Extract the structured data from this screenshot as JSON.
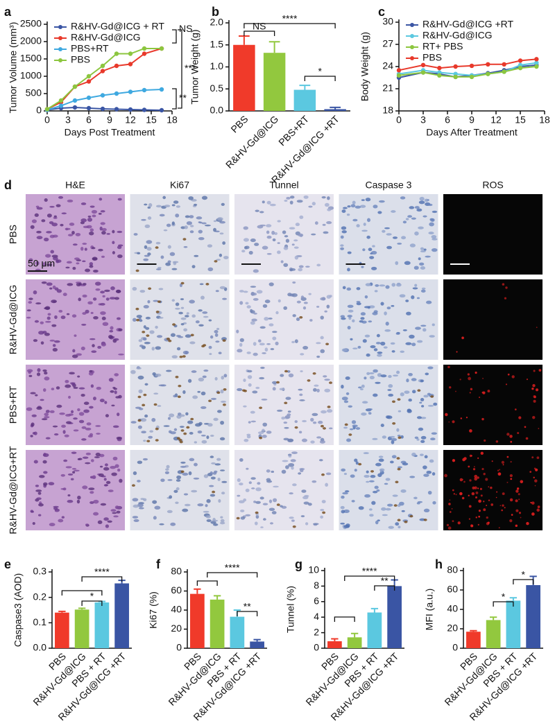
{
  "chart_data": [
    {
      "type": "line",
      "panel_label": "a",
      "ylabel": "Tumor Volume (mm³)",
      "xlabel": "Days Post Treatment",
      "x": [
        0,
        2,
        4,
        6,
        8,
        10,
        12,
        14,
        16.5
      ],
      "xlim": [
        0,
        18
      ],
      "xticks": [
        0,
        3,
        6,
        9,
        12,
        15,
        18
      ],
      "ylim": [
        0,
        2500
      ],
      "yticks": [
        0,
        500,
        1000,
        1500,
        2000,
        2500
      ],
      "legend": "upper left",
      "series": [
        {
          "name": "R&HV-Gd@ICG + RT",
          "color": "#3a55a4",
          "values": [
            30,
            80,
            100,
            80,
            60,
            50,
            40,
            30,
            20
          ]
        },
        {
          "name": "R&HV-Gd@ICG",
          "color": "#e8392b",
          "values": [
            50,
            250,
            700,
            850,
            1150,
            1300,
            1350,
            1650,
            1800
          ]
        },
        {
          "name": "PBS+RT",
          "color": "#3fa9e0",
          "values": [
            30,
            150,
            300,
            380,
            450,
            500,
            550,
            600,
            620
          ]
        },
        {
          "name": "PBS",
          "color": "#8cc63f",
          "values": [
            50,
            300,
            700,
            1000,
            1300,
            1650,
            1650,
            1800,
            1800
          ]
        }
      ],
      "annotations": [
        "NS",
        "***",
        "**"
      ]
    },
    {
      "type": "bar",
      "panel_label": "b",
      "ylabel": "Tumor Weight (g)",
      "categories": [
        "PBS",
        "R&HV-Gd@ICG",
        "PBS+RT",
        "R&HV-Gd@ICG +RT"
      ],
      "values": [
        1.5,
        1.32,
        0.48,
        0.04
      ],
      "errors": [
        0.2,
        0.25,
        0.1,
        0.04
      ],
      "colors": [
        "#f03a2a",
        "#92c83e",
        "#5bc8e0",
        "#3a55a4"
      ],
      "ylim": [
        0,
        2
      ],
      "yticks": [
        {
          "value": 0,
          "label": "0.0"
        },
        {
          "value": 0.5,
          "label": "0.5"
        },
        {
          "value": 1,
          "label": "1.0"
        },
        {
          "value": 1.5,
          "label": "1.5"
        },
        {
          "value": 2,
          "label": "2.0"
        }
      ],
      "annotations": [
        "****",
        "NS",
        "*"
      ]
    },
    {
      "type": "line",
      "panel_label": "c",
      "ylabel": "Body Weight (g)",
      "xlabel": "Days After Treatment",
      "x": [
        0,
        3,
        5,
        7,
        9,
        11,
        13,
        15,
        17
      ],
      "xlim": [
        0,
        18
      ],
      "xticks": [
        0,
        3,
        6,
        9,
        12,
        15,
        18
      ],
      "ylim": [
        18,
        30
      ],
      "yticks": [
        18,
        21,
        24,
        27,
        30
      ],
      "legend": "upper left",
      "series": [
        {
          "name": "R&HV-Gd@ICG +RT",
          "color": "#3a55a4",
          "values": [
            22.5,
            23.2,
            23,
            22.6,
            22.8,
            23.1,
            23.5,
            24,
            24.2
          ]
        },
        {
          "name": "R&HV-Gd@ICG",
          "color": "#5bc8e0",
          "values": [
            23,
            23.5,
            23.2,
            23,
            22.8,
            23,
            23.3,
            24.2,
            24.5
          ]
        },
        {
          "name": "RT+ PBS",
          "color": "#8cc63f",
          "values": [
            22.8,
            23.2,
            22.8,
            22.6,
            22.6,
            23,
            23.3,
            23.8,
            24
          ]
        },
        {
          "name": "PBS",
          "color": "#e8392b",
          "values": [
            23.5,
            24.2,
            23.8,
            24,
            24.1,
            24.3,
            24.3,
            24.8,
            25
          ]
        }
      ]
    },
    {
      "type": "bar",
      "panel_label": "e",
      "ylabel": "Caspase3 (AOD)",
      "categories": [
        "PBS",
        "R&HV-Gd@ICG",
        "PBS + RT",
        "R&HV-Gd@ICG +RT"
      ],
      "values": [
        0.14,
        0.152,
        0.18,
        0.255
      ],
      "errors": [
        0.005,
        0.005,
        0.004,
        0.012
      ],
      "colors": [
        "#f03a2a",
        "#92c83e",
        "#5bc8e0",
        "#3a55a4"
      ],
      "ylim": [
        0,
        0.3
      ],
      "yticks": [
        {
          "value": 0,
          "label": "0.0"
        },
        0.1,
        0.2,
        0.3
      ],
      "annotations": [
        "****",
        "*"
      ]
    },
    {
      "type": "bar",
      "panel_label": "f",
      "ylabel": "Ki67 (%)",
      "categories": [
        "PBS",
        "R&HV-Gd@ICG",
        "PBS + RT",
        "R&HV-Gd@ICG +RT"
      ],
      "values": [
        57,
        51,
        33,
        7
      ],
      "errors": [
        5,
        4,
        7,
        2
      ],
      "colors": [
        "#f03a2a",
        "#92c83e",
        "#5bc8e0",
        "#3a55a4"
      ],
      "ylim": [
        0,
        80
      ],
      "yticks": [
        0,
        20,
        40,
        60,
        80
      ],
      "annotations": [
        "****",
        "**"
      ]
    },
    {
      "type": "bar",
      "panel_label": "g",
      "ylabel": "Tunnel (%)",
      "categories": [
        "PBS",
        "R&HV-Gd@ICG",
        "PBS + RT",
        "R&HV-Gd@ICG +RT"
      ],
      "values": [
        0.9,
        1.4,
        4.6,
        8
      ],
      "errors": [
        0.3,
        0.5,
        0.5,
        0.8
      ],
      "colors": [
        "#f03a2a",
        "#92c83e",
        "#5bc8e0",
        "#3a55a4"
      ],
      "ylim": [
        0,
        10
      ],
      "yticks": [
        0,
        2,
        4,
        6,
        8,
        10
      ],
      "annotations": [
        "****",
        "**"
      ]
    },
    {
      "type": "bar",
      "panel_label": "h",
      "ylabel": "MFI (a.u.)",
      "categories": [
        "PBS",
        "R&HV-Gd@ICG",
        "PBS + RT",
        "R&HV-Gd@ICG +RT"
      ],
      "values": [
        17,
        29,
        49,
        65
      ],
      "errors": [
        1,
        3,
        3,
        9
      ],
      "colors": [
        "#f03a2a",
        "#92c83e",
        "#5bc8e0",
        "#3a55a4"
      ],
      "ylim": [
        0,
        80
      ],
      "yticks": [
        0,
        20,
        40,
        60,
        80
      ],
      "annotations": [
        "*",
        "*"
      ]
    }
  ],
  "image_panel": {
    "panel_label": "d",
    "columns": [
      "H&E",
      "Ki67",
      "Tunnel",
      "Caspase 3",
      "ROS"
    ],
    "rows": [
      "PBS",
      "R&HV-Gd@ICG",
      "PBS+RT",
      "R&HV-Gd@ICG+RT"
    ],
    "scale_bar": "50 μm"
  }
}
